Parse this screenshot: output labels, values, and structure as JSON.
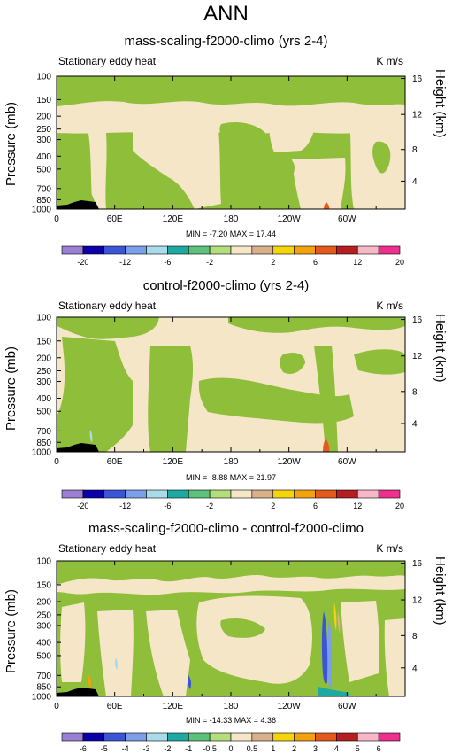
{
  "main_title": "ANN",
  "colors": {
    "positive_small": "#f5e6c8",
    "negative_small": "#8fbe3a",
    "land": "#000000"
  },
  "panels": [
    {
      "title": "mass-scaling-f2000-climo (yrs 2-4)",
      "variable": "Stationary eddy heat",
      "units": "K m/s",
      "ylabel": "Pressure (mb)",
      "ylabel_right": "Height (km)",
      "minmax": "MIN = -7.20  MAX = 17.44",
      "colorbar_labels": [
        "-20",
        "-12",
        "-6",
        "-2",
        "2",
        "6",
        "12",
        "20"
      ]
    },
    {
      "title": "control-f2000-climo (yrs 2-4)",
      "variable": "Stationary eddy heat",
      "units": "K m/s",
      "ylabel": "Pressure (mb)",
      "ylabel_right": "Height (km)",
      "minmax": "MIN = -8.88  MAX = 21.97",
      "colorbar_labels": [
        "-20",
        "-12",
        "-6",
        "-2",
        "2",
        "6",
        "12",
        "20"
      ]
    },
    {
      "title": "mass-scaling-f2000-climo - control-f2000-climo",
      "variable": "Stationary eddy heat",
      "units": "K m/s",
      "ylabel": "Pressure (mb)",
      "ylabel_right": "Height (km)",
      "minmax": "MIN = -14.33  MAX = 4.36",
      "colorbar_labels": [
        "-6",
        "-5",
        "-4",
        "-3",
        "-2",
        "-1",
        "-0.5",
        "0",
        "0.5",
        "1",
        "2",
        "3",
        "4",
        "5",
        "6"
      ]
    }
  ],
  "chart_data": [
    {
      "type": "heatmap",
      "title": "mass-scaling-f2000-climo (yrs 2-4)",
      "ylabel": "Pressure (mb)",
      "y2label": "Height (km)",
      "x_ticks": [
        "0",
        "60E",
        "120E",
        "180",
        "120W",
        "60W"
      ],
      "x_tick_values": [
        0,
        60,
        120,
        180,
        240,
        300
      ],
      "xlim": [
        0,
        360
      ],
      "y_ticks": [
        "100",
        "150",
        "200",
        "250",
        "300",
        "400",
        "500",
        "700",
        "850",
        "1000"
      ],
      "y_tick_values": [
        100,
        150,
        200,
        250,
        300,
        400,
        500,
        700,
        850,
        1000
      ],
      "ylim": [
        1000,
        100
      ],
      "y_scale": "log",
      "y2_ticks": [
        "4",
        "8",
        "12",
        "16"
      ],
      "min": -7.2,
      "max": 17.44,
      "levels": [
        -20,
        -16,
        -12,
        -8,
        -6,
        -4,
        -2,
        -1,
        1,
        2,
        4,
        6,
        8,
        12,
        16,
        20
      ],
      "colors": [
        "#9b7fd4",
        "#0b00a8",
        "#3b55d6",
        "#7b9fe8",
        "#a8dcea",
        "#1fa9a3",
        "#5cc17d",
        "#b4de7c",
        "#f5e6c8",
        "#dab08a",
        "#f4d40b",
        "#f1a20e",
        "#e55a1c",
        "#b51f21",
        "#f7b7c6",
        "#ee2f8f"
      ],
      "grid": false
    },
    {
      "type": "heatmap",
      "title": "control-f2000-climo (yrs 2-4)",
      "ylabel": "Pressure (mb)",
      "y2label": "Height (km)",
      "x_ticks": [
        "0",
        "60E",
        "120E",
        "180",
        "120W",
        "60W"
      ],
      "x_tick_values": [
        0,
        60,
        120,
        180,
        240,
        300
      ],
      "xlim": [
        0,
        360
      ],
      "y_ticks": [
        "100",
        "150",
        "200",
        "250",
        "300",
        "400",
        "500",
        "700",
        "850",
        "1000"
      ],
      "y_tick_values": [
        100,
        150,
        200,
        250,
        300,
        400,
        500,
        700,
        850,
        1000
      ],
      "ylim": [
        1000,
        100
      ],
      "y_scale": "log",
      "y2_ticks": [
        "4",
        "8",
        "12",
        "16"
      ],
      "min": -8.88,
      "max": 21.97,
      "levels": [
        -20,
        -16,
        -12,
        -8,
        -6,
        -4,
        -2,
        -1,
        1,
        2,
        4,
        6,
        8,
        12,
        16,
        20
      ],
      "colors": [
        "#9b7fd4",
        "#0b00a8",
        "#3b55d6",
        "#7b9fe8",
        "#a8dcea",
        "#1fa9a3",
        "#5cc17d",
        "#b4de7c",
        "#f5e6c8",
        "#dab08a",
        "#f4d40b",
        "#f1a20e",
        "#e55a1c",
        "#b51f21",
        "#f7b7c6",
        "#ee2f8f"
      ],
      "grid": false
    },
    {
      "type": "heatmap",
      "title": "mass-scaling-f2000-climo - control-f2000-climo",
      "ylabel": "Pressure (mb)",
      "y2label": "Height (km)",
      "x_ticks": [
        "0",
        "60E",
        "120E",
        "180",
        "120W",
        "60W"
      ],
      "x_tick_values": [
        0,
        60,
        120,
        180,
        240,
        300
      ],
      "xlim": [
        0,
        360
      ],
      "y_ticks": [
        "100",
        "150",
        "200",
        "250",
        "300",
        "400",
        "500",
        "700",
        "850",
        "1000"
      ],
      "y_tick_values": [
        100,
        150,
        200,
        250,
        300,
        400,
        500,
        700,
        850,
        1000
      ],
      "ylim": [
        1000,
        100
      ],
      "y_scale": "log",
      "y2_ticks": [
        "4",
        "8",
        "12",
        "16"
      ],
      "min": -14.33,
      "max": 4.36,
      "levels": [
        -6,
        -5,
        -4,
        -3,
        -2,
        -1,
        -0.5,
        0,
        0.5,
        1,
        2,
        3,
        4,
        5,
        6
      ],
      "colors": [
        "#9b7fd4",
        "#0b00a8",
        "#3b55d6",
        "#7b9fe8",
        "#a8dcea",
        "#1fa9a3",
        "#5cc17d",
        "#b4de7c",
        "#f5e6c8",
        "#dab08a",
        "#f4d40b",
        "#f1a20e",
        "#e55a1c",
        "#b51f21",
        "#f7b7c6",
        "#ee2f8f"
      ],
      "grid": false
    }
  ]
}
